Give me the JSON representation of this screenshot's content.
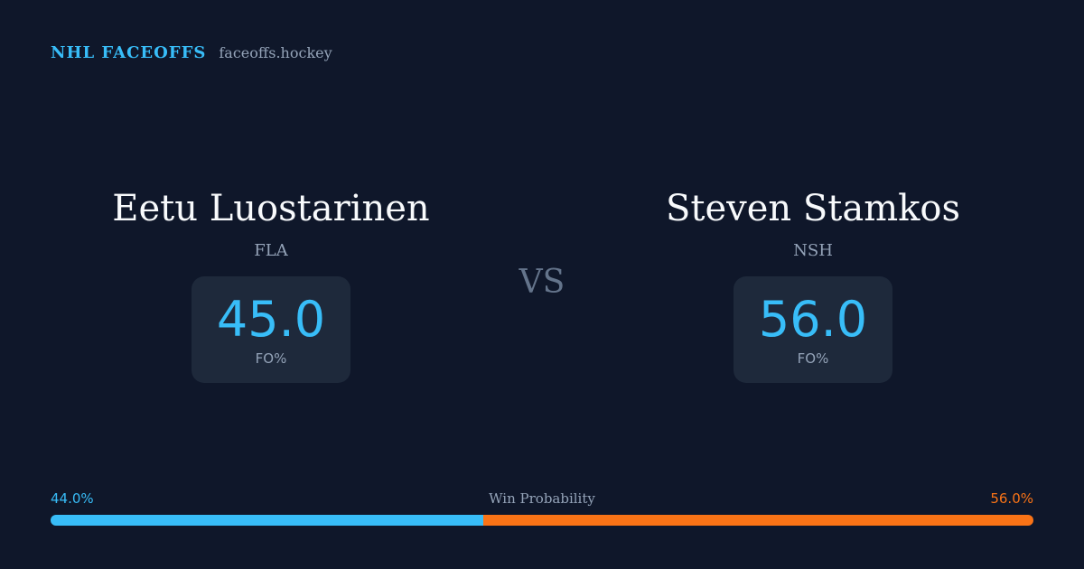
{
  "brand": {
    "title": "NHL FACEOFFS",
    "domain": "faceoffs.hockey"
  },
  "players": [
    {
      "name": "Eetu Luostarinen",
      "team": "FLA",
      "stat_value": "45.0",
      "stat_label": "FO%"
    },
    {
      "name": "Steven Stamkos",
      "team": "NSH",
      "stat_value": "56.0",
      "stat_label": "FO%"
    }
  ],
  "vs_label": "VS",
  "win_probability": {
    "title": "Win Probability",
    "left_label": "44.0%",
    "right_label": "56.0%",
    "left_fraction": 0.44,
    "right_fraction": 0.56,
    "left_color": "#38bdf8",
    "right_color": "#f97316"
  },
  "colors": {
    "background": "#0f172a",
    "accent": "#38bdf8",
    "card": "#1e293b",
    "muted": "#94a3b8"
  }
}
